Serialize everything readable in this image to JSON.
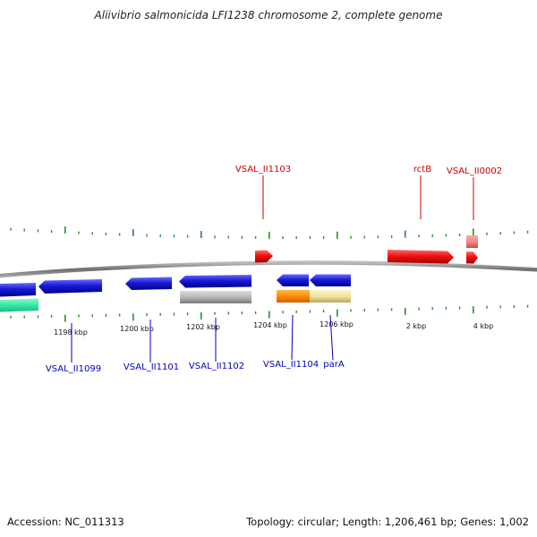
{
  "title": "Aliivibrio salmonicida LFI1238 chromosome 2, complete genome",
  "footer": {
    "accession": "Accession: NC_011313",
    "topology": "Topology: circular; Length: 1,206,461 bp; Genes: 1,002"
  },
  "colors": {
    "backbone": "#8c8c8c",
    "tick": "#2e8b2e",
    "forward_gene": "#ee1111",
    "reverse_gene": "#1a1ad8",
    "forward_label": "#cc0000",
    "reverse_label": "#0000bb",
    "teal_feature": "#33e8a8",
    "grey_feature": "#b8b8b8",
    "orange_feature": "#ff8c00",
    "yellow_feature": "#efe4a0",
    "pink_feature": "#ef8080"
  },
  "scale": {
    "labels": [
      "1198 kbp",
      "1200 kbp",
      "1202 kbp",
      "1204 kbp",
      "1206 kbp",
      "2 kbp",
      "4 kbp"
    ]
  },
  "labels": {
    "forward": [
      "VSAL_II1103",
      "rctB",
      "VSAL_II0002"
    ],
    "reverse": [
      "VSAL_II1099",
      "VSAL_II1101",
      "VSAL_II1102",
      "VSAL_II1104",
      "parA"
    ]
  },
  "features": [
    {
      "name": "VSAL_II1103",
      "strand": "+",
      "track": "gene"
    },
    {
      "name": "rctB",
      "strand": "+",
      "track": "gene"
    },
    {
      "name": "VSAL_II0002",
      "strand": "+",
      "track": "gene"
    },
    {
      "name": "VSAL_II0002",
      "strand": "+",
      "track": "cds",
      "color": "pink"
    },
    {
      "name": "VSAL_II1099",
      "strand": "-",
      "track": "gene"
    },
    {
      "name": "VSAL_II1101",
      "strand": "-",
      "track": "gene"
    },
    {
      "name": "VSAL_II1102",
      "strand": "-",
      "track": "gene"
    },
    {
      "name": "VSAL_II1104",
      "strand": "-",
      "track": "gene"
    },
    {
      "name": "parA",
      "strand": "-",
      "track": "gene"
    },
    {
      "strand": "-",
      "track": "cds",
      "color": "teal"
    },
    {
      "strand": "-",
      "track": "cds",
      "color": "grey"
    },
    {
      "strand": "-",
      "track": "cds",
      "color": "orange"
    },
    {
      "strand": "-",
      "track": "cds",
      "color": "yellow"
    }
  ]
}
